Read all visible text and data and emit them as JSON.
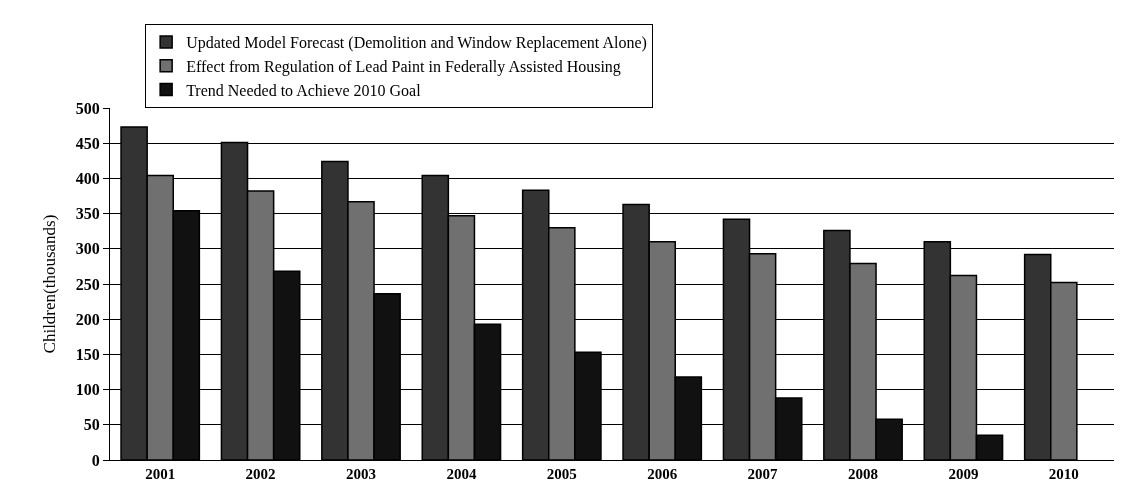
{
  "chart_data": {
    "type": "bar",
    "ylabel": "Children(thousands)",
    "categories": [
      "2001",
      "2002",
      "2003",
      "2004",
      "2005",
      "2006",
      "2007",
      "2008",
      "2009",
      "2010"
    ],
    "series": [
      {
        "name": "Updated Model Forecast (Demolition and Window Replacement Alone)",
        "color": "#333333",
        "values": [
          473,
          451,
          424,
          404,
          383,
          363,
          342,
          326,
          310,
          292
        ]
      },
      {
        "name": "Effect from Regulation of Lead Paint in Federally Assisted Housing",
        "color": "#707070",
        "values": [
          404,
          382,
          367,
          347,
          330,
          310,
          293,
          279,
          262,
          252
        ]
      },
      {
        "name": "Trend Needed to Achieve 2010 Goal",
        "color": "#111111",
        "values": [
          354,
          268,
          236,
          193,
          153,
          118,
          88,
          58,
          35,
          null
        ]
      }
    ],
    "ylim": [
      0,
      500
    ],
    "yticks": [
      0,
      50,
      100,
      150,
      200,
      250,
      300,
      350,
      400,
      450,
      500
    ],
    "grid": "y",
    "legend": "top left"
  }
}
